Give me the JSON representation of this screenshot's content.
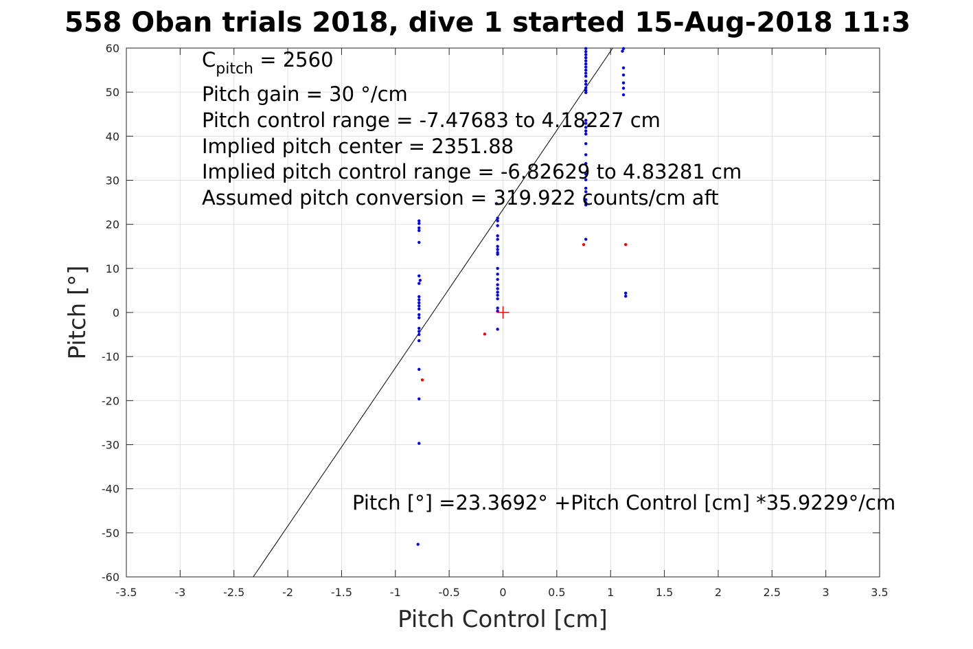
{
  "chart_data": {
    "type": "scatter",
    "title": "558 Oban trials 2018, dive 1 started 15-Aug-2018 11:3",
    "xlabel": "Pitch Control [cm]",
    "ylabel": "Pitch [°]",
    "xlim": [
      -3.5,
      3.5
    ],
    "ylim": [
      -60,
      60
    ],
    "xticks": [
      -3.5,
      -3,
      -2.5,
      -2,
      -1.5,
      -1,
      -0.5,
      0,
      0.5,
      1,
      1.5,
      2,
      2.5,
      3,
      3.5
    ],
    "xtick_labels": [
      "-3.5",
      "-3",
      "-2.5",
      "-2",
      "-1.5",
      "-1",
      "-0.5",
      "0",
      "0.5",
      "1",
      "1.5",
      "2",
      "2.5",
      "3",
      "3.5"
    ],
    "yticks": [
      -60,
      -50,
      -40,
      -30,
      -20,
      -10,
      0,
      10,
      20,
      30,
      40,
      50,
      60
    ],
    "ytick_labels": [
      "-60",
      "-50",
      "-40",
      "-30",
      "-20",
      "-10",
      "0",
      "10",
      "20",
      "30",
      "40",
      "50",
      "60"
    ],
    "grid": true,
    "annotations": [
      {
        "parts": [
          {
            "text": "C"
          },
          {
            "text": "pitch",
            "sub": true
          },
          {
            "text": " = 2560"
          }
        ]
      },
      {
        "parts": [
          {
            "text": "Pitch gain = 30 °/cm"
          }
        ]
      },
      {
        "parts": [
          {
            "text": "Pitch control range = -7.47683 to 4.18227 cm"
          }
        ]
      },
      {
        "parts": [
          {
            "text": "Implied pitch center = 2351.88"
          }
        ]
      },
      {
        "parts": [
          {
            "text": "Implied pitch control range = -6.82629 to 4.83281 cm"
          }
        ]
      },
      {
        "parts": [
          {
            "text": "Assumed pitch conversion = 319.922 counts/cm aft"
          }
        ]
      }
    ],
    "fit_label": "Pitch [°] =23.3692° +Pitch Control [cm] *35.9229°/cm",
    "fit": {
      "intercept": 23.3692,
      "slope": 35.9229,
      "color": "#000000"
    },
    "center_marker": {
      "x": 0,
      "y": 0,
      "color": "#ff0000"
    },
    "series": [
      {
        "color": "#0000ff",
        "points": [
          [
            -0.78,
            20.8
          ],
          [
            -0.78,
            20.2
          ],
          [
            -0.78,
            19.2
          ],
          [
            -0.78,
            18.6
          ],
          [
            -0.78,
            15.9
          ],
          [
            -0.78,
            8.3
          ],
          [
            -0.77,
            7.3
          ],
          [
            -0.78,
            6.6
          ],
          [
            -0.78,
            3.6
          ],
          [
            -0.78,
            2.9
          ],
          [
            -0.78,
            2.2
          ],
          [
            -0.78,
            1.5
          ],
          [
            -0.78,
            0.8
          ],
          [
            -0.78,
            -0.5
          ],
          [
            -0.78,
            -1.2
          ],
          [
            -0.78,
            -3.6
          ],
          [
            -0.78,
            -4.3
          ],
          [
            -0.78,
            -5.0
          ],
          [
            -0.78,
            -6.4
          ],
          [
            -0.78,
            -12.9
          ],
          [
            -0.78,
            -19.6
          ],
          [
            -0.78,
            -29.7
          ],
          [
            -0.79,
            -52.6
          ],
          [
            -0.06,
            24.7
          ],
          [
            -0.05,
            21.4
          ],
          [
            -0.05,
            20.8
          ],
          [
            -0.05,
            19.7
          ],
          [
            -0.05,
            17.4
          ],
          [
            -0.05,
            16.6
          ],
          [
            -0.05,
            15.0
          ],
          [
            -0.05,
            14.3
          ],
          [
            -0.05,
            13.6
          ],
          [
            -0.05,
            13.2
          ],
          [
            -0.05,
            10.0
          ],
          [
            -0.05,
            8.7
          ],
          [
            -0.05,
            7.5
          ],
          [
            -0.05,
            6.3
          ],
          [
            -0.05,
            5.4
          ],
          [
            -0.05,
            4.6
          ],
          [
            -0.05,
            3.9
          ],
          [
            -0.05,
            3.1
          ],
          [
            -0.05,
            1.0
          ],
          [
            -0.05,
            0.3
          ],
          [
            -0.05,
            -3.8
          ],
          [
            0.77,
            59.9
          ],
          [
            0.77,
            59.2
          ],
          [
            0.77,
            58.5
          ],
          [
            0.77,
            57.8
          ],
          [
            0.77,
            57.1
          ],
          [
            0.77,
            56.4
          ],
          [
            0.77,
            55.7
          ],
          [
            0.77,
            55.0
          ],
          [
            0.77,
            54.3
          ],
          [
            0.77,
            53.6
          ],
          [
            0.77,
            52.5
          ],
          [
            0.77,
            51.8
          ],
          [
            0.77,
            51.0
          ],
          [
            0.77,
            50.4
          ],
          [
            0.77,
            49.9
          ],
          [
            0.77,
            43.6
          ],
          [
            0.77,
            42.9
          ],
          [
            0.77,
            42.0
          ],
          [
            0.77,
            41.2
          ],
          [
            0.77,
            40.5
          ],
          [
            0.77,
            38.3
          ],
          [
            0.77,
            35.8
          ],
          [
            0.77,
            33.8
          ],
          [
            0.77,
            31.4
          ],
          [
            0.77,
            30.1
          ],
          [
            0.77,
            28.2
          ],
          [
            0.77,
            27.4
          ],
          [
            0.77,
            25.6
          ],
          [
            0.77,
            24.9
          ],
          [
            0.77,
            24.4
          ],
          [
            0.77,
            16.6
          ],
          [
            1.12,
            59.9
          ],
          [
            1.11,
            59.3
          ],
          [
            1.12,
            55.5
          ],
          [
            1.12,
            53.9
          ],
          [
            1.12,
            52.1
          ],
          [
            1.12,
            50.9
          ],
          [
            1.12,
            49.4
          ],
          [
            1.14,
            4.4
          ],
          [
            1.14,
            3.7
          ]
        ]
      },
      {
        "color": "#ff0000",
        "points": [
          [
            -0.75,
            -15.3
          ],
          [
            -0.17,
            -4.9
          ],
          [
            0.75,
            15.4
          ],
          [
            1.14,
            15.4
          ]
        ]
      }
    ]
  }
}
